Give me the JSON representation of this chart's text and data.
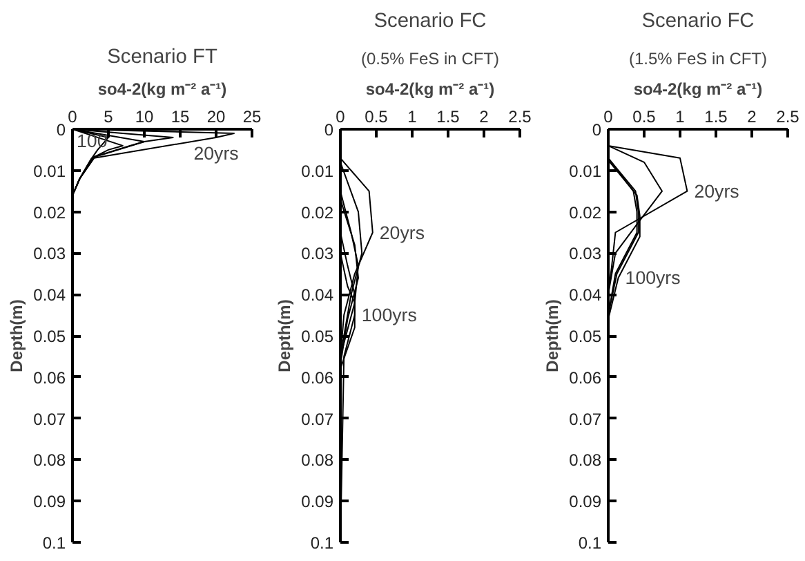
{
  "chart_data": [
    {
      "type": "line",
      "title": "Scenario FT",
      "xlabel": "so4-2(kg m⁻² a⁻¹)",
      "ylabel": "Depth(m)",
      "xlim": [
        0,
        25
      ],
      "xticks": [
        0,
        5,
        10,
        15,
        20,
        25
      ],
      "ylim": [
        0.1,
        0
      ],
      "yticks": [
        0,
        0.01,
        0.02,
        0.03,
        0.04,
        0.05,
        0.06,
        0.07,
        0.08,
        0.09,
        0.1
      ],
      "grid": false,
      "marker": "none",
      "line_style": "solid",
      "series": [
        {
          "color": "#000000",
          "x": [
            0,
            22.5,
            20,
            3,
            1,
            0,
            0
          ],
          "values": [
            0,
            0.001,
            0.002,
            0.007,
            0.012,
            0.016,
            0.1
          ]
        },
        {
          "color": "#000000",
          "x": [
            0,
            14,
            10,
            3,
            1,
            0,
            0
          ],
          "values": [
            0,
            0.002,
            0.003,
            0.0068,
            0.012,
            0.016,
            0.1
          ]
        },
        {
          "color": "#000000",
          "x": [
            0,
            10,
            8,
            2.8,
            1,
            0,
            0
          ],
          "values": [
            0,
            0.003,
            0.004,
            0.0068,
            0.012,
            0.016,
            0.1
          ]
        },
        {
          "color": "#000000",
          "x": [
            0,
            7,
            5,
            2.7,
            1,
            0,
            0
          ],
          "values": [
            0,
            0.004,
            0.005,
            0.007,
            0.012,
            0.016,
            0.1
          ]
        },
        {
          "color": "#000000",
          "x": [
            0,
            5,
            3.5,
            2.5,
            1,
            0,
            0
          ],
          "values": [
            0,
            0.002,
            0.005,
            0.0075,
            0.012,
            0.016,
            0.1
          ]
        }
      ],
      "annotations": [
        {
          "text": "20yrs",
          "x": 20,
          "y": 0.002
        },
        {
          "text": "100",
          "x": 0,
          "y": 0
        }
      ]
    },
    {
      "type": "line",
      "title": "Scenario FC",
      "subtitle": "(0.5% FeS in CFT)",
      "xlabel": "so4-2(kg m⁻² a⁻¹)",
      "ylabel": "Depth(m)",
      "xlim": [
        0,
        2.5
      ],
      "xticks": [
        0,
        0.5,
        1,
        1.5,
        2,
        2.5
      ],
      "ylim": [
        0.1,
        0
      ],
      "yticks": [
        0,
        0.01,
        0.02,
        0.03,
        0.04,
        0.05,
        0.06,
        0.07,
        0.08,
        0.09,
        0.1
      ],
      "grid": false,
      "marker": "none",
      "line_style": "solid",
      "series": [
        {
          "color": "#000000",
          "x": [
            0,
            0.4,
            0.45,
            0.2,
            0.05,
            0,
            0
          ],
          "values": [
            0.007,
            0.015,
            0.025,
            0.035,
            0.045,
            0.055,
            0.1
          ]
        },
        {
          "color": "#000000",
          "x": [
            0,
            0.25,
            0.3,
            0.15,
            0,
            0
          ],
          "values": [
            0.008,
            0.02,
            0.03,
            0.04,
            0.055,
            0.1
          ]
        },
        {
          "color": "#000000",
          "x": [
            0,
            0.15,
            0.25,
            0.2,
            0,
            0
          ],
          "values": [
            0.015,
            0.025,
            0.033,
            0.042,
            0.055,
            0.1
          ]
        },
        {
          "color": "#000000",
          "x": [
            0,
            0.2,
            0.25,
            0.1,
            0,
            0
          ],
          "values": [
            0.017,
            0.028,
            0.036,
            0.046,
            0.057,
            0.1
          ]
        },
        {
          "color": "#000000",
          "x": [
            0,
            0.1,
            0.2,
            0.2,
            0.05,
            0
          ],
          "values": [
            0.025,
            0.033,
            0.04,
            0.045,
            0.055,
            0.1
          ]
        },
        {
          "color": "#000000",
          "x": [
            0,
            0.1,
            0.2,
            0.2,
            0,
            0
          ],
          "values": [
            0.03,
            0.038,
            0.042,
            0.048,
            0.058,
            0.1
          ]
        }
      ],
      "annotations": [
        {
          "text": "20yrs",
          "x": 0.45,
          "y": 0.025
        },
        {
          "text": "100yrs",
          "x": 0.2,
          "y": 0.045
        }
      ]
    },
    {
      "type": "line",
      "title": "Scenario FC",
      "subtitle": "(1.5% FeS in CFT)",
      "xlabel": "so4-2(kg m⁻² a⁻¹)",
      "ylabel": "Depth(m)",
      "xlim": [
        0,
        2.5
      ],
      "xticks": [
        0,
        0.5,
        1,
        1.5,
        2,
        2.5
      ],
      "ylim": [
        0.1,
        0
      ],
      "yticks": [
        0,
        0.01,
        0.02,
        0.03,
        0.04,
        0.05,
        0.06,
        0.07,
        0.08,
        0.09,
        0.1
      ],
      "grid": false,
      "marker": "none",
      "line_style": "solid",
      "series": [
        {
          "color": "#000000",
          "x": [
            0,
            1.0,
            1.1,
            0.1,
            0.05,
            0,
            0
          ],
          "values": [
            0.004,
            0.007,
            0.015,
            0.025,
            0.033,
            0.04,
            0.1
          ]
        },
        {
          "color": "#000000",
          "x": [
            0,
            0.5,
            0.75,
            0.4,
            0.1,
            0,
            0
          ],
          "values": [
            0.004,
            0.008,
            0.015,
            0.023,
            0.03,
            0.04,
            0.1
          ]
        },
        {
          "color": "#000000",
          "x": [
            0,
            0.35,
            0.4,
            0.4,
            0.1,
            0,
            0
          ],
          "values": [
            0.007,
            0.015,
            0.02,
            0.025,
            0.035,
            0.045,
            0.1
          ]
        },
        {
          "color": "#000000",
          "x": [
            0,
            0.38,
            0.42,
            0.42,
            0.12,
            0,
            0
          ],
          "values": [
            0.007,
            0.015,
            0.02,
            0.025,
            0.035,
            0.045,
            0.1
          ]
        },
        {
          "color": "#000000",
          "x": [
            0,
            0.4,
            0.44,
            0.44,
            0.14,
            0,
            0
          ],
          "values": [
            0.0075,
            0.016,
            0.021,
            0.026,
            0.036,
            0.046,
            0.1
          ]
        }
      ],
      "annotations": [
        {
          "text": "20yrs",
          "x": 1.1,
          "y": 0.015
        },
        {
          "text": "100yrs",
          "x": 0.14,
          "y": 0.036
        }
      ]
    }
  ]
}
